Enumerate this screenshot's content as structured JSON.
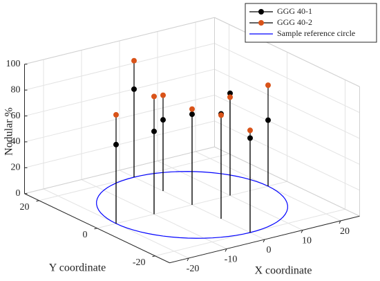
{
  "chart_data": {
    "type": "stem3",
    "xlabel": "X coordinate",
    "ylabel": "Y coordinate",
    "zlabel": "Nodular %",
    "x": [
      -20,
      0,
      -10,
      0,
      0,
      0,
      10,
      0,
      20
    ],
    "y": [
      0,
      20,
      0,
      10,
      0,
      -10,
      0,
      -20,
      0
    ],
    "series": [
      {
        "name": "GGG 40-1",
        "color": "#000000",
        "values": [
          61,
          68,
          64,
          55,
          70,
          81,
          79,
          73,
          51
        ]
      },
      {
        "name": "GGG 40-2",
        "color": "#d95319",
        "values": [
          84,
          90,
          91,
          74,
          74,
          80,
          76,
          79,
          78
        ]
      }
    ],
    "stem_color": "#000000",
    "reference_circle": {
      "name": "Sample reference circle",
      "color": "#0000ff",
      "radius": 20
    },
    "xlim": [
      -25,
      25
    ],
    "ylim": [
      -25,
      25
    ],
    "zlim": [
      0,
      100
    ],
    "xticks": [
      -20,
      -10,
      0,
      10,
      20
    ],
    "yticks": [
      -20,
      0,
      20
    ],
    "zticks": [
      0,
      20,
      40,
      60,
      80,
      100
    ],
    "grid": true,
    "legend": "upper right"
  }
}
